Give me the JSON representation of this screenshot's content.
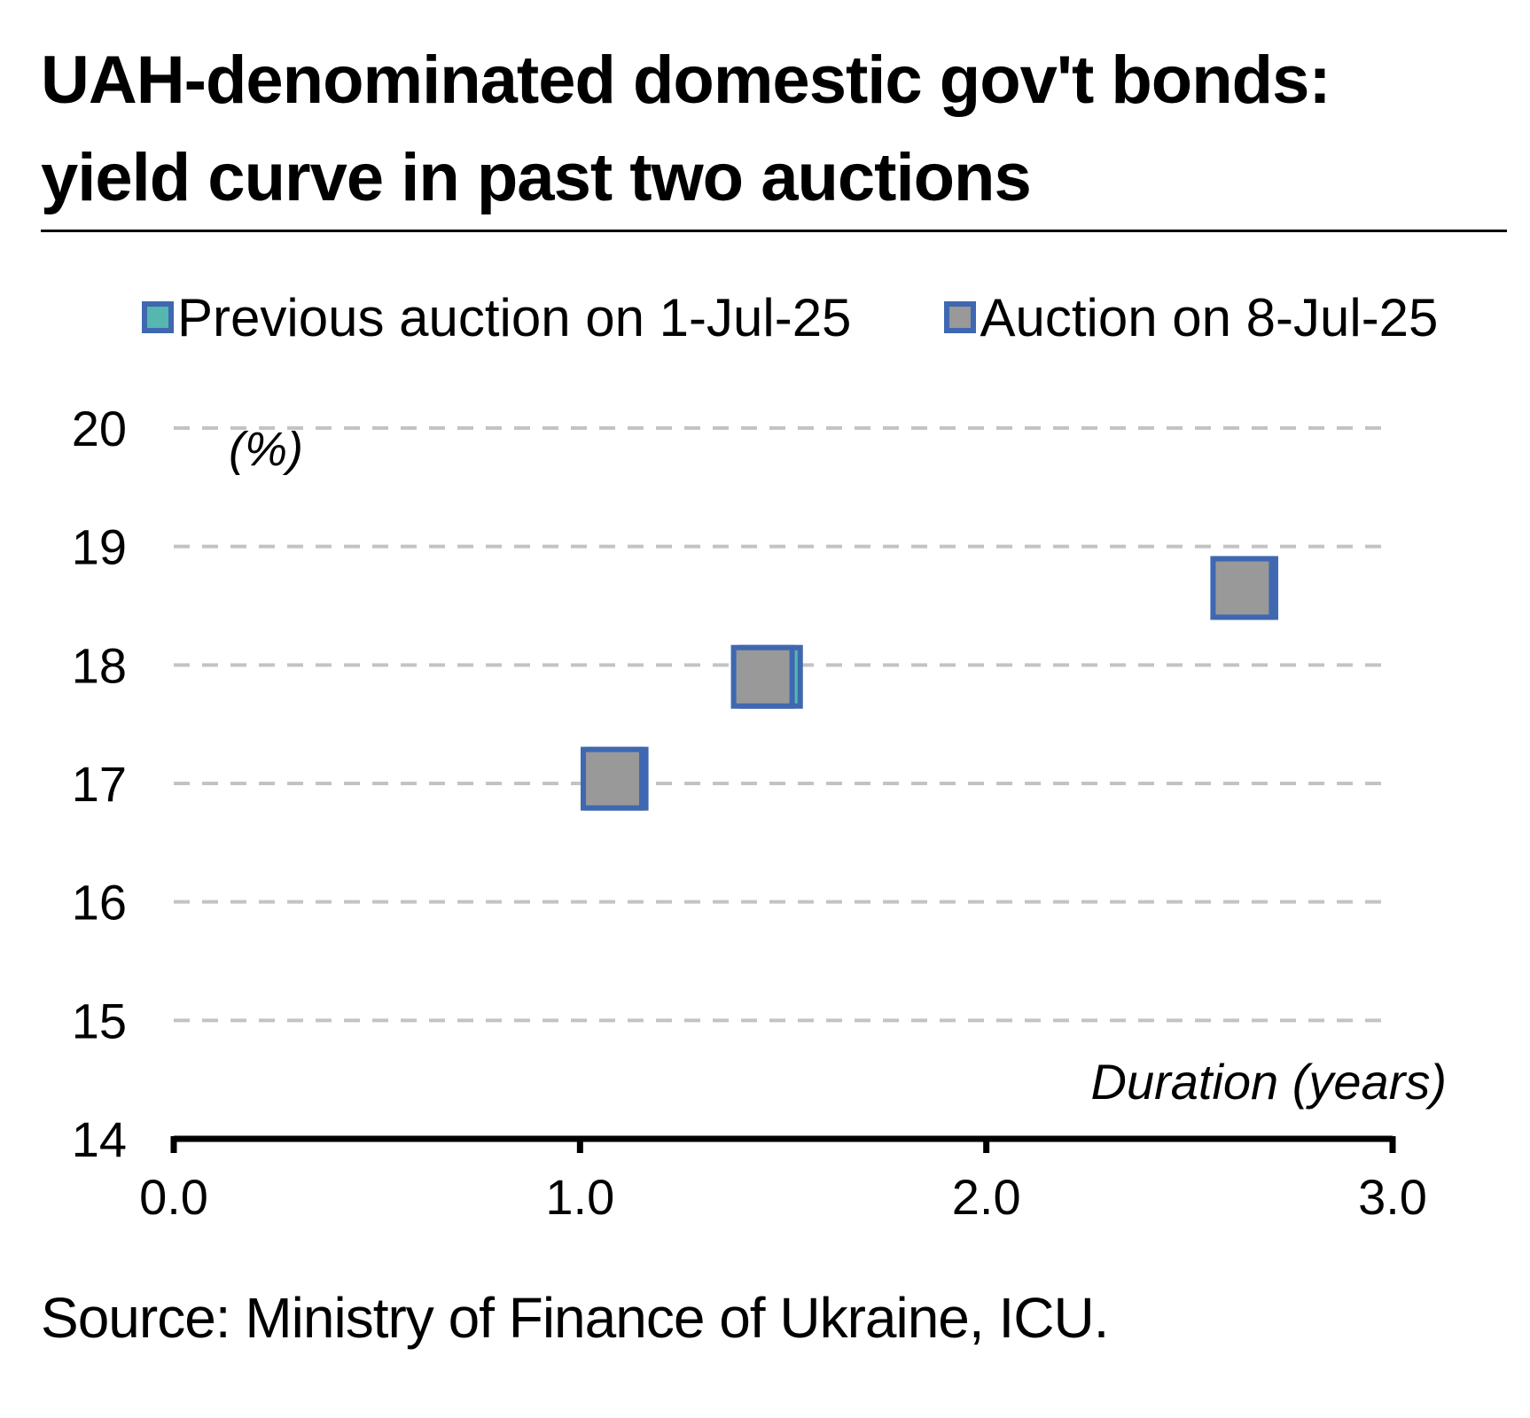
{
  "title_lines": [
    "UAH-denominated domestic gov't bonds:",
    "yield curve in past two auctions"
  ],
  "legend": [
    {
      "label": "Previous auction on 1-Jul-25",
      "color": "#55b7b0",
      "border": "#3f68b0"
    },
    {
      "label": "Auction on 8-Jul-25",
      "color": "#999999",
      "border": "#3f68b0"
    }
  ],
  "source": "Source: Ministry of Finance of Ukraine, ICU.",
  "chart_data": {
    "type": "scatter",
    "ylabel": "(%)",
    "xlabel": "Duration (years)",
    "xlim": [
      0,
      3
    ],
    "ylim": [
      14,
      20
    ],
    "x_ticks": [
      "0.0",
      "1.0",
      "2.0",
      "3.0"
    ],
    "y_ticks": [
      "20",
      "19",
      "18",
      "17",
      "16",
      "15",
      "14"
    ],
    "grid": "horizontal dashed",
    "series": [
      {
        "name": "Previous auction on 1-Jul-25",
        "color": "#55b7b0",
        "points": [
          {
            "x": 1.09,
            "y": 17.04
          },
          {
            "x": 1.47,
            "y": 17.9
          },
          {
            "x": 2.64,
            "y": 18.65
          }
        ]
      },
      {
        "name": "Auction on 8-Jul-25",
        "color": "#999999",
        "points": [
          {
            "x": 1.08,
            "y": 17.04
          },
          {
            "x": 1.45,
            "y": 17.9
          },
          {
            "x": 2.63,
            "y": 18.65
          }
        ]
      }
    ]
  }
}
